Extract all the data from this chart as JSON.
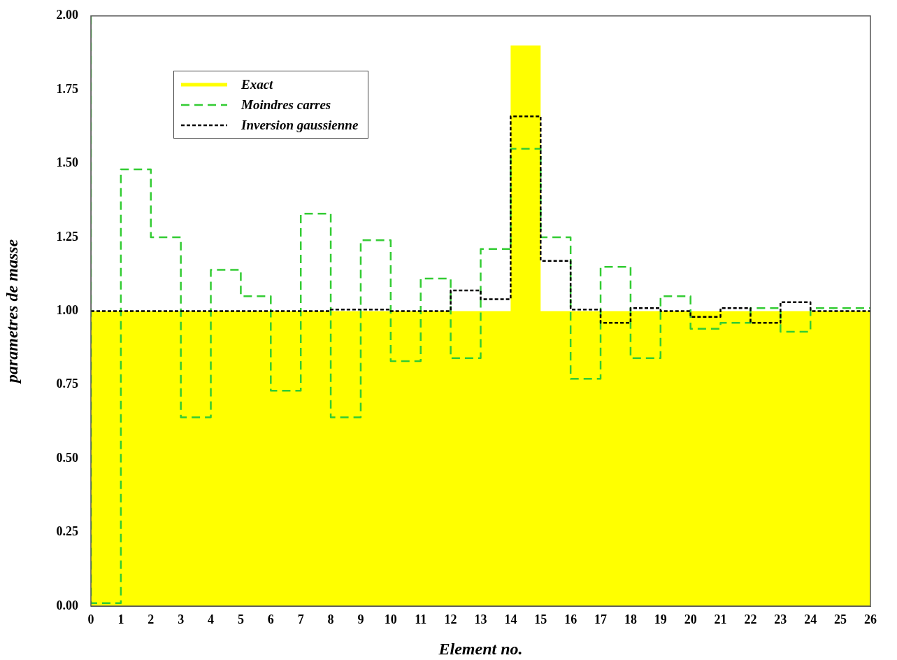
{
  "chart_data": {
    "type": "step",
    "xlabel": "Element no.",
    "ylabel": "parametres de masse",
    "x": [
      0,
      1,
      2,
      3,
      4,
      5,
      6,
      7,
      8,
      9,
      10,
      11,
      12,
      13,
      14,
      15,
      16,
      17,
      18,
      19,
      20,
      21,
      22,
      23,
      24,
      25,
      26
    ],
    "xlim": [
      0,
      26
    ],
    "xticks": [
      0,
      1,
      2,
      3,
      4,
      5,
      6,
      7,
      8,
      9,
      10,
      11,
      12,
      13,
      14,
      15,
      16,
      17,
      18,
      19,
      20,
      21,
      22,
      23,
      24,
      25,
      26
    ],
    "ylim": [
      0,
      2
    ],
    "yticks": [
      {
        "value": 0,
        "label": "0.00"
      },
      {
        "value": 0.25,
        "label": "0.25"
      },
      {
        "value": 0.5,
        "label": "0.50"
      },
      {
        "value": 0.75,
        "label": "0.75"
      },
      {
        "value": 1,
        "label": "1.00"
      },
      {
        "value": 1.25,
        "label": "1.25"
      },
      {
        "value": 1.5,
        "label": "1.50"
      },
      {
        "value": 1.75,
        "label": "1.75"
      },
      {
        "value": 2,
        "label": "2.00"
      }
    ],
    "grid": false,
    "legend": "top left",
    "series": [
      {
        "name": "Exact",
        "type": "area",
        "color": "#ffff00",
        "line_style": "solid",
        "values": [
          1,
          1,
          1,
          1,
          1,
          1,
          1,
          1,
          1,
          1,
          1,
          1,
          1,
          1,
          1,
          1.9,
          1,
          1,
          1,
          1,
          1,
          1,
          1,
          1,
          1,
          1,
          1
        ]
      },
      {
        "name": "Moindres carres",
        "color": "#33cc33",
        "line_style": "dashed",
        "values": [
          2,
          0.01,
          1.48,
          1.25,
          0.64,
          1.14,
          1.05,
          0.73,
          1.33,
          0.64,
          1.24,
          0.83,
          1.11,
          0.84,
          1.21,
          1.55,
          1.25,
          0.77,
          1.15,
          0.84,
          1.05,
          0.94,
          0.96,
          1.01,
          0.93,
          1.01,
          1.01
        ]
      },
      {
        "name": "Inversion gaussienne",
        "color": "#000000",
        "line_style": "dotted",
        "values": [
          1,
          1,
          1,
          1,
          1,
          1,
          1,
          1,
          1,
          1.005,
          1.005,
          1,
          1,
          1.07,
          1.04,
          1.66,
          1.17,
          1.005,
          0.96,
          1.01,
          1,
          0.98,
          1.01,
          0.96,
          1.03,
          1,
          1
        ]
      }
    ]
  }
}
